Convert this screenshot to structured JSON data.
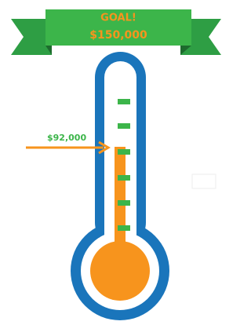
{
  "banner": {
    "title": "GOAL!",
    "amount": "$150,000"
  },
  "marker": {
    "label": "$92,000"
  }
}
